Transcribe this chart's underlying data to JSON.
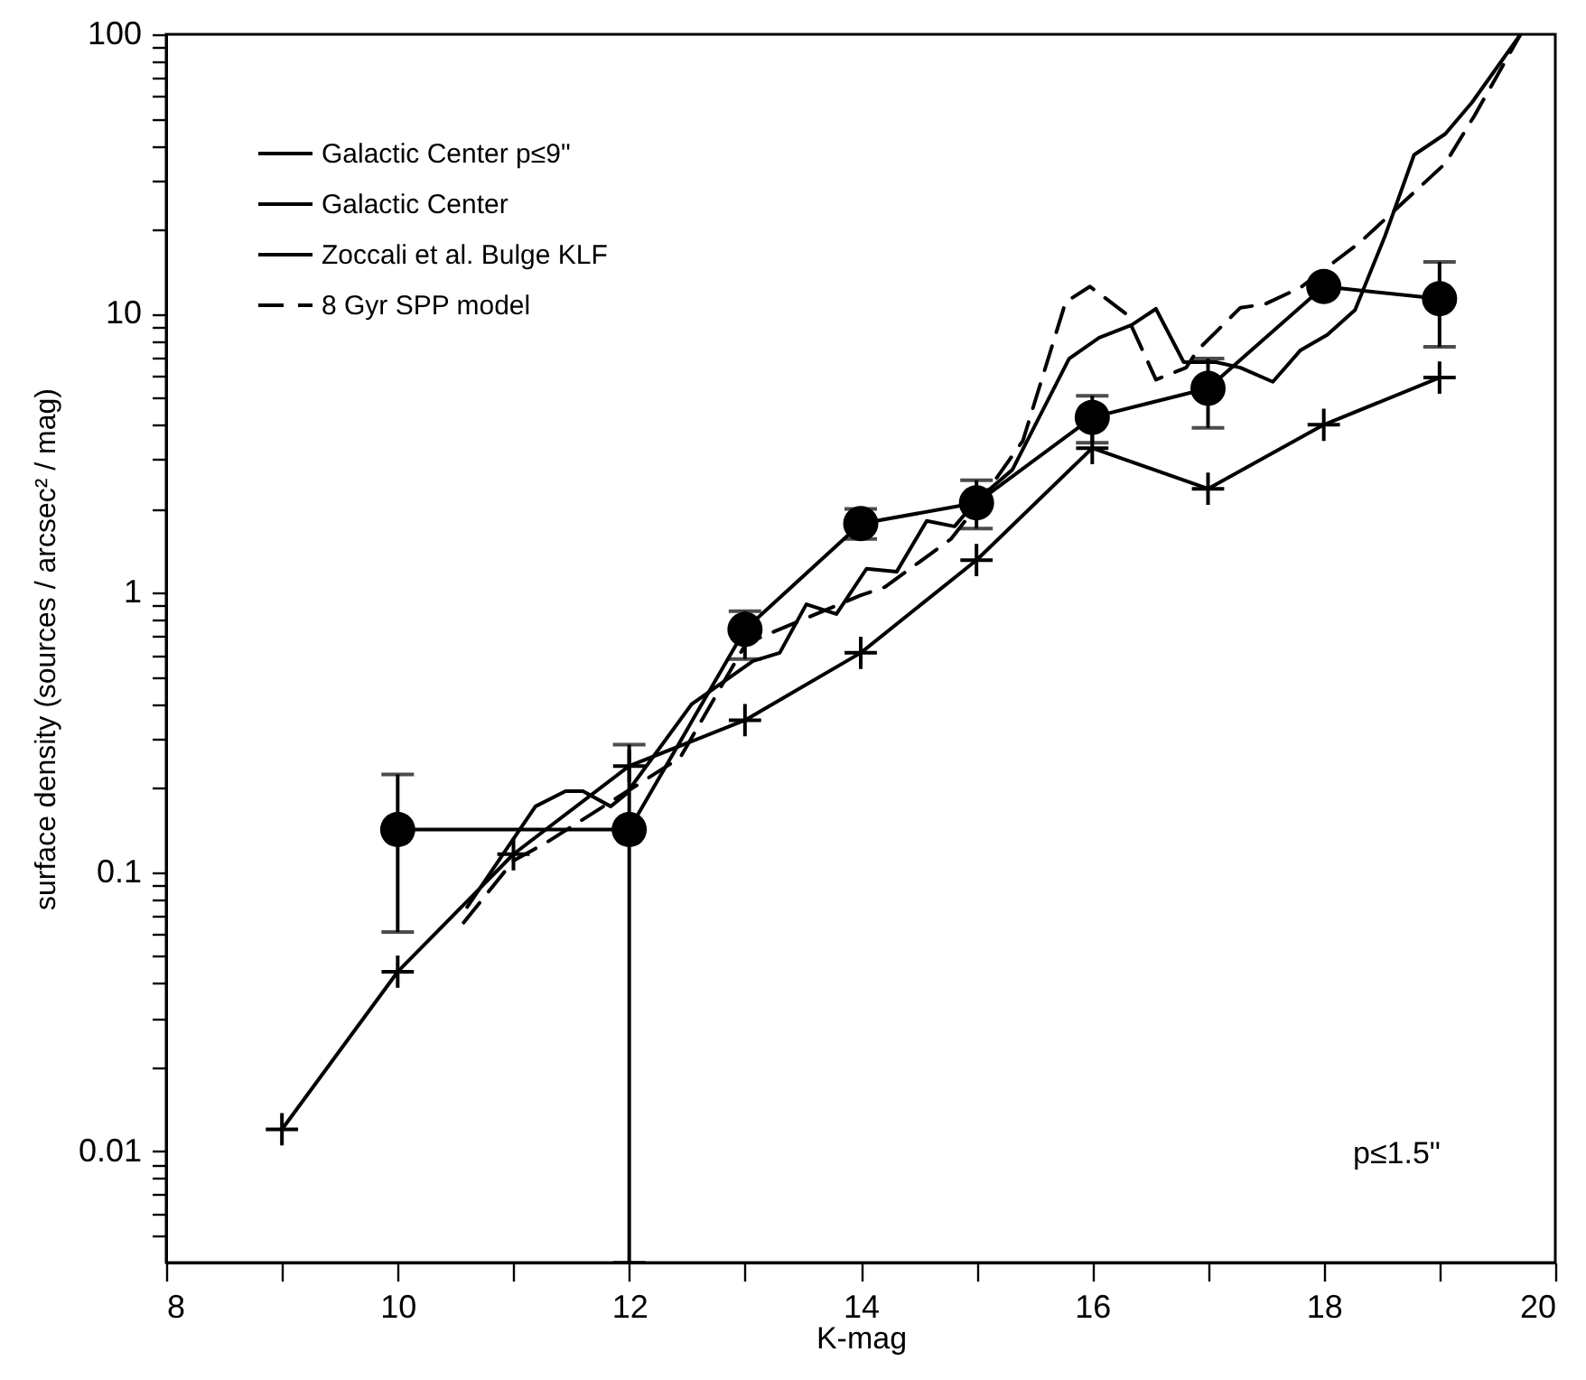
{
  "chart_data": {
    "type": "line",
    "xlabel": "K-mag",
    "ylabel": "surface density (sources / arcsec² / mag)",
    "log": "y",
    "xlim": [
      8,
      20
    ],
    "ylim": [
      0.004,
      100
    ],
    "xticks": [
      8,
      {
        "value": 9,
        "label": null
      },
      10,
      {
        "value": 11,
        "label": null
      },
      12,
      {
        "value": 13,
        "label": null
      },
      14,
      {
        "value": 15,
        "label": null
      },
      16,
      {
        "value": 17,
        "label": null
      },
      18,
      {
        "value": 19,
        "label": null
      },
      20
    ],
    "yticks": [
      {
        "value": 0.005,
        "label": null
      },
      {
        "value": 0.006,
        "label": null
      },
      {
        "value": 0.007,
        "label": null
      },
      {
        "value": 0.008,
        "label": null
      },
      {
        "value": 0.009,
        "label": null
      },
      0.01,
      {
        "value": 0.02,
        "label": null
      },
      {
        "value": 0.03,
        "label": null
      },
      {
        "value": 0.04,
        "label": null
      },
      {
        "value": 0.05,
        "label": null
      },
      {
        "value": 0.06,
        "label": null
      },
      {
        "value": 0.07,
        "label": null
      },
      {
        "value": 0.08,
        "label": null
      },
      {
        "value": 0.09,
        "label": null
      },
      0.1,
      {
        "value": 0.2,
        "label": null
      },
      {
        "value": 0.3,
        "label": null
      },
      {
        "value": 0.4,
        "label": null
      },
      {
        "value": 0.5,
        "label": null
      },
      {
        "value": 0.6,
        "label": null
      },
      {
        "value": 0.7,
        "label": null
      },
      {
        "value": 0.8,
        "label": null
      },
      {
        "value": 0.9,
        "label": null
      },
      1,
      {
        "value": 2,
        "label": null
      },
      {
        "value": 3,
        "label": null
      },
      {
        "value": 4,
        "label": null
      },
      {
        "value": 5,
        "label": null
      },
      {
        "value": 6,
        "label": null
      },
      {
        "value": 7,
        "label": null
      },
      {
        "value": 8,
        "label": null
      },
      {
        "value": 9,
        "label": null
      },
      10,
      {
        "value": 20,
        "label": null
      },
      {
        "value": 30,
        "label": null
      },
      {
        "value": 40,
        "label": null
      },
      {
        "value": 50,
        "label": null
      },
      {
        "value": 60,
        "label": null
      },
      {
        "value": 70,
        "label": null
      },
      {
        "value": 80,
        "label": null
      },
      {
        "value": 90,
        "label": null
      },
      100
    ],
    "legend": "top left",
    "grid": false,
    "annotations": [
      "p≤1.5\""
    ],
    "series": [
      {
        "name": "Galactic Center p≤9\"",
        "color": "#000000",
        "marker": "cross",
        "line_style": "solid",
        "x": [
          9,
          10,
          11,
          12,
          13,
          14,
          15,
          16,
          17,
          18,
          19
        ],
        "values": [
          0.012,
          0.044,
          0.116,
          0.24,
          0.35,
          0.61,
          1.31,
          3.3,
          2.36,
          4.0,
          5.9
        ]
      },
      {
        "name": "Galactic Center",
        "color": "#000000",
        "marker": "circle",
        "line_style": "solid",
        "x": [
          10,
          12,
          13,
          14,
          15,
          16,
          17,
          18,
          19
        ],
        "values": [
          0.142,
          0.142,
          0.74,
          1.77,
          2.1,
          4.25,
          5.4,
          12.5,
          11.3
        ],
        "errors": [
          [
            0.061,
            0.224
          ],
          [
            0.004,
            0.286
          ],
          [
            0.58,
            0.86
          ],
          [
            1.56,
            2.0
          ],
          [
            1.7,
            2.53
          ],
          [
            3.45,
            5.08
          ],
          [
            3.9,
            6.9
          ],
          null,
          [
            7.6,
            15.3
          ]
        ]
      },
      {
        "name": "Zoccali et al. Bulge KLF",
        "color": "#000000",
        "marker": "none",
        "line_style": "solid",
        "x": [
          10.6,
          11.19,
          11.45,
          11.6,
          11.84,
          11.97,
          12.54,
          13.07,
          13.3,
          13.53,
          13.79,
          14.05,
          14.31,
          14.57,
          14.81,
          15.0,
          15.31,
          15.8,
          16.06,
          16.34,
          16.55,
          16.79,
          17.07,
          17.28,
          17.56,
          17.8,
          18.03,
          18.27,
          18.53,
          18.78,
          19.05,
          19.28,
          19.7
        ],
        "values": [
          0.075,
          0.172,
          0.195,
          0.195,
          0.172,
          0.19,
          0.4,
          0.57,
          0.61,
          0.91,
          0.84,
          1.22,
          1.19,
          1.81,
          1.73,
          2.14,
          2.76,
          6.9,
          8.2,
          9.1,
          10.4,
          6.7,
          6.7,
          6.4,
          5.7,
          7.4,
          8.4,
          10.3,
          19,
          37,
          44,
          57,
          100
        ]
      },
      {
        "name": "8 Gyr SPP model",
        "color": "#000000",
        "marker": "none",
        "line_style": "dashed",
        "x": [
          10.57,
          11.0,
          11.29,
          12.44,
          13.01,
          14.0,
          14.21,
          14.78,
          15.0,
          15.4,
          15.77,
          15.98,
          16.29,
          16.55,
          16.81,
          16.91,
          17.28,
          17.49,
          17.8,
          18.32,
          19.05,
          19.3,
          19.7
        ],
        "values": [
          0.066,
          0.11,
          0.128,
          0.257,
          0.66,
          0.98,
          1.05,
          1.56,
          2.04,
          3.5,
          11.0,
          12.5,
          10.0,
          5.8,
          6.4,
          7.4,
          10.5,
          10.8,
          12.4,
          18.1,
          34.5,
          51,
          100
        ]
      }
    ]
  }
}
